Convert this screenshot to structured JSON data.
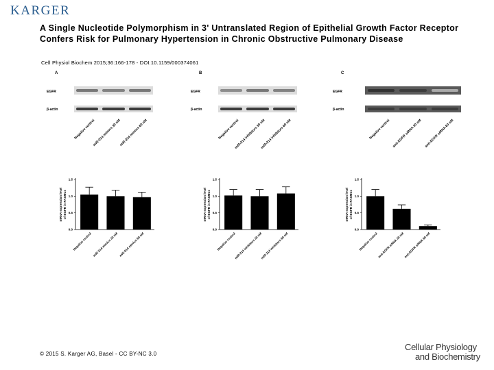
{
  "header": {
    "logo": "KARGER"
  },
  "paper": {
    "title": "A Single Nucleotide Polymorphism in 3' Untranslated Region of Epithelial Growth Factor Receptor Confers Risk for Pulmonary Hypertension in Chronic Obstructive Pulmonary Disease",
    "citation": "Cell Physiol Biochem 2015;36:166-178 - DOI:10.1159/000374061"
  },
  "footer": {
    "copyright": "© 2015 S. Karger AG, Basel - CC BY-NC 3.0",
    "journal_line1": "Cellular Physiology",
    "journal_line2": "and Biochemistry"
  },
  "panels": [
    {
      "letter": "A",
      "blot_labels": [
        "EGFR",
        "β-actin"
      ],
      "lanes": [
        "Negative control",
        "miR-214 mimics 30 nM",
        "miR-214 mimics 60 nM"
      ],
      "egfr_intensity": [
        0.55,
        0.5,
        0.55
      ],
      "chart_data": {
        "type": "bar",
        "categories": [
          "Negative control",
          "miR-214 mimics 30 nM",
          "miR-214 mimics 60 nM"
        ],
        "values": [
          1.05,
          1.0,
          0.97
        ],
        "errors": [
          0.22,
          0.18,
          0.15
        ],
        "ylabel_line1": "mRNA expression level",
        "ylabel_line2": "of EGFR in PASMCs",
        "ylim": [
          0,
          1.5
        ],
        "yticks": [
          "0.0",
          "0.5",
          "1.0",
          "1.5"
        ]
      }
    },
    {
      "letter": "B",
      "blot_labels": [
        "EGFR",
        "β-actin"
      ],
      "lanes": [
        "Negative control",
        "miR-214 inhibitors 30 nM",
        "miR-214 inhibitors 60 nM"
      ],
      "egfr_intensity": [
        0.45,
        0.55,
        0.5
      ],
      "chart_data": {
        "type": "bar",
        "categories": [
          "Negative control",
          "miR-214 inhibitors 30 nM",
          "miR-214 inhibitors 60 nM"
        ],
        "values": [
          1.02,
          1.0,
          1.08
        ],
        "errors": [
          0.18,
          0.2,
          0.2
        ],
        "ylabel_line1": "mRNA expression level",
        "ylabel_line2": "of EGFR in PASMCs",
        "ylim": [
          0,
          1.5
        ],
        "yticks": [
          "0.0",
          "0.5",
          "1.0",
          "1.5"
        ]
      }
    },
    {
      "letter": "C",
      "blot_labels": [
        "EGFR",
        "β-actin"
      ],
      "lanes": [
        "Negative control",
        "anti-EGFR siRNA 30 nM",
        "anti-EGFR siRNA 60 nM"
      ],
      "egfr_intensity": [
        0.9,
        0.85,
        0.3
      ],
      "chart_data": {
        "type": "bar",
        "categories": [
          "Negative control",
          "anti-EGFR siRNA 30 nM",
          "anti-EGFR siRNA 60 nM"
        ],
        "values": [
          1.0,
          0.62,
          0.1
        ],
        "errors": [
          0.2,
          0.12,
          0.04
        ],
        "ylabel_line1": "mRNA expression level",
        "ylabel_line2": "of EGFR in PASMCs",
        "ylim": [
          0,
          1.5
        ],
        "yticks": [
          "0.0",
          "0.5",
          "1.0",
          "1.5"
        ]
      }
    }
  ]
}
